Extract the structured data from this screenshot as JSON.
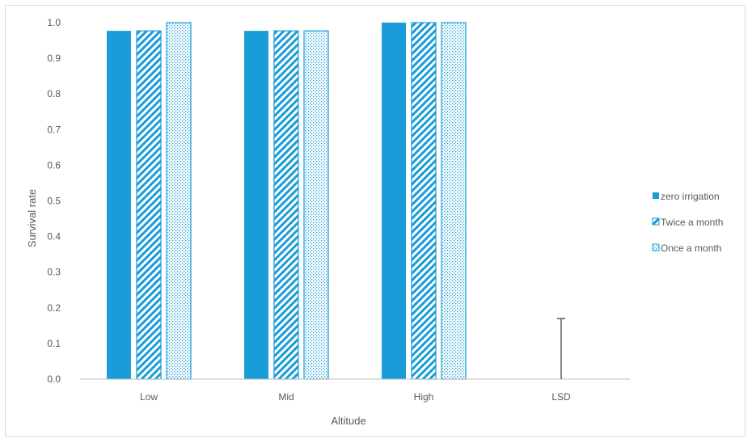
{
  "chart_data": {
    "type": "bar",
    "title": "",
    "xlabel": "Altitude",
    "ylabel": "Survival rate",
    "ylim": [
      0,
      1.0
    ],
    "yticks": [
      "0.0",
      "0.1",
      "0.2",
      "0.3",
      "0.4",
      "0.5",
      "0.6",
      "0.7",
      "0.8",
      "0.9",
      "1.0"
    ],
    "categories": [
      "Low",
      "Mid",
      "High",
      "LSD"
    ],
    "series": [
      {
        "name": "zero irrigation",
        "values": [
          0.977,
          0.977,
          1.0,
          null
        ],
        "pattern": "solid"
      },
      {
        "name": "Twice a month",
        "values": [
          0.977,
          0.977,
          1.0,
          null
        ],
        "pattern": "diagonal"
      },
      {
        "name": "Once a month",
        "values": [
          1.0,
          0.977,
          1.0,
          null
        ],
        "pattern": "dotted"
      }
    ],
    "lsd": {
      "category": "LSD",
      "value": 0.17
    },
    "grid": false,
    "legend_position": "right",
    "colors": {
      "bar": "#1a9cd8",
      "axis": "#bfbfbf",
      "text": "#595959",
      "lsd_line": "#404040"
    }
  }
}
